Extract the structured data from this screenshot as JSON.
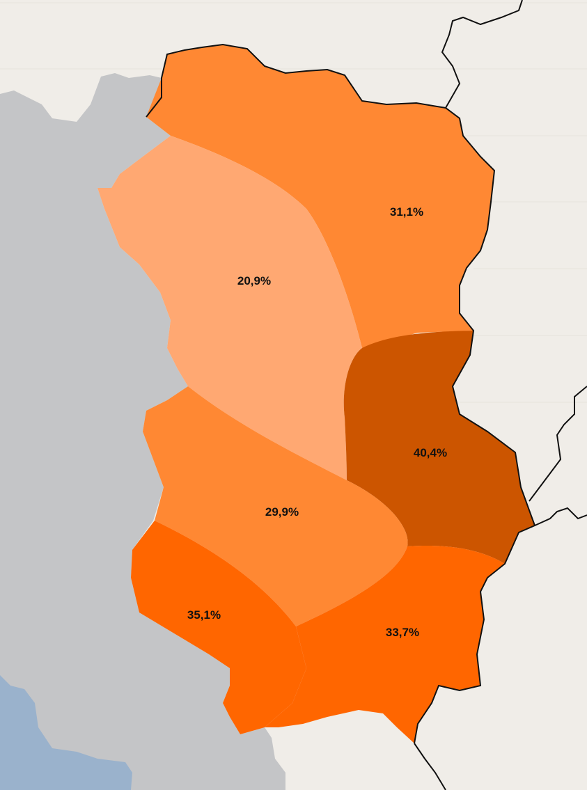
{
  "map": {
    "colors": {
      "background": "#f0ede8",
      "neighbour_land": "#c4c5c7",
      "water": "#9ab2cc",
      "border": "#111111"
    },
    "regions": [
      {
        "id": "north",
        "value": "31,1%",
        "color": "#ff8833"
      },
      {
        "id": "west",
        "value": "20,9%",
        "color": "#ffa872"
      },
      {
        "id": "east",
        "value": "40,4%",
        "color": "#cc5500"
      },
      {
        "id": "centre-south",
        "value": "29,9%",
        "color": "#ff8833"
      },
      {
        "id": "southwest",
        "value": "35,1%",
        "color": "#ff6600"
      },
      {
        "id": "south",
        "value": "33,7%",
        "color": "#ff6600"
      }
    ]
  }
}
